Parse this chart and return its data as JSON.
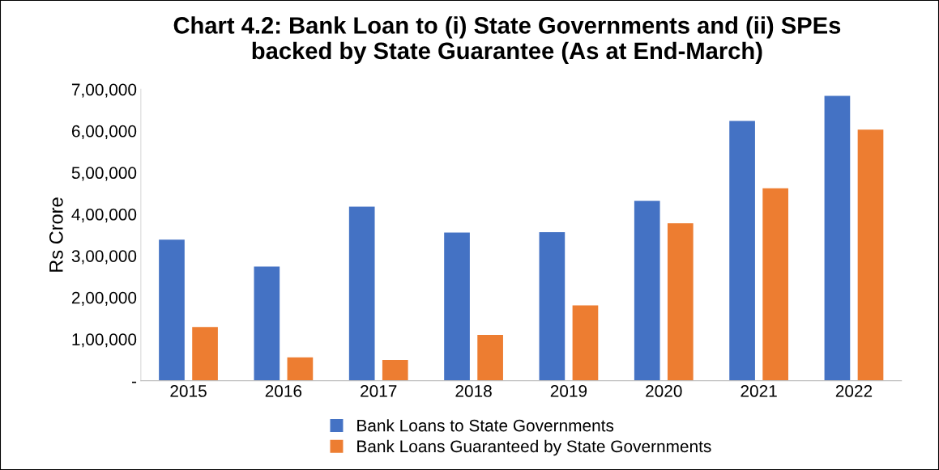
{
  "chart_data": {
    "type": "bar",
    "title": "Chart 4.2: Bank Loan to (i) State Governments and (ii) SPEs\nbacked by State Guarantee (As at End-March)",
    "ylabel": "Rs Crore",
    "categories": [
      "2015",
      "2016",
      "2017",
      "2018",
      "2019",
      "2020",
      "2021",
      "2022"
    ],
    "series": [
      {
        "name": "Bank Loans to State Governments",
        "color": "#4472c4",
        "values": [
          339000,
          274000,
          418000,
          356000,
          357000,
          432000,
          624000,
          684000
        ]
      },
      {
        "name": "Bank Loans Guaranteed by State Governments",
        "color": "#ed7d31",
        "values": [
          129000,
          56000,
          50000,
          110000,
          181000,
          378000,
          462000,
          603000
        ]
      }
    ],
    "ylim": [
      0,
      700000
    ],
    "yticks": [
      {
        "value": 0,
        "label": "-"
      },
      {
        "value": 100000,
        "label": "1,00,000"
      },
      {
        "value": 200000,
        "label": "2,00,000"
      },
      {
        "value": 300000,
        "label": "3,00,000"
      },
      {
        "value": 400000,
        "label": "4,00,000"
      },
      {
        "value": 500000,
        "label": "5,00,000"
      },
      {
        "value": 600000,
        "label": "6,00,000"
      },
      {
        "value": 700000,
        "label": "7,00,000"
      }
    ],
    "grid": false,
    "legend": "bottom"
  }
}
